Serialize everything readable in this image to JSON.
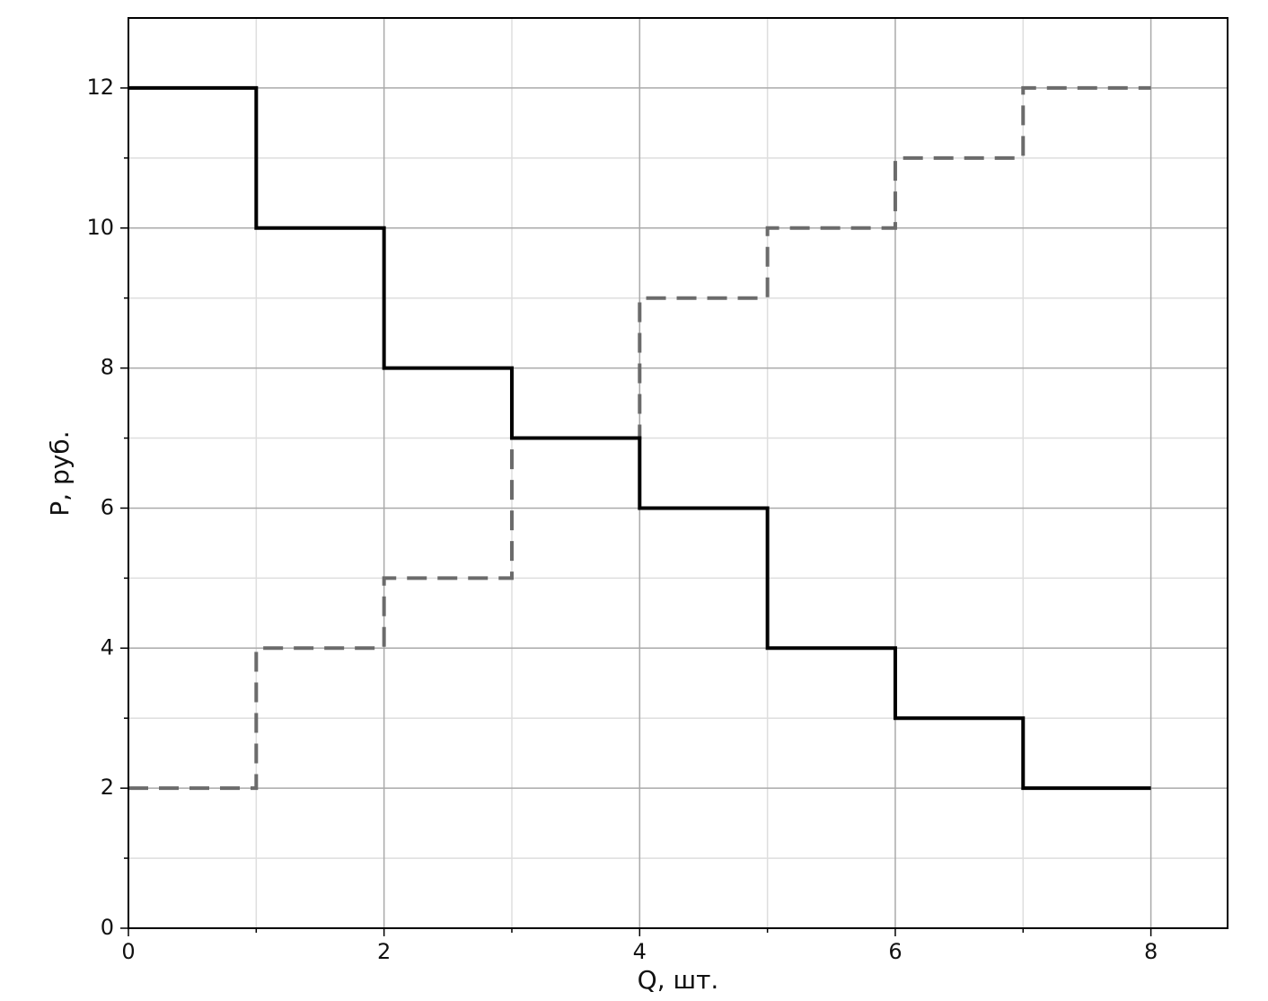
{
  "chart_data": {
    "type": "step-line",
    "step": "post",
    "x_label": "Q, шт.",
    "y_label": "P, руб.",
    "x": [
      0,
      1,
      2,
      3,
      4,
      5,
      6,
      7,
      8
    ],
    "series": [
      {
        "color": "#000000",
        "line_style": "solid",
        "values": [
          12,
          10,
          8,
          7,
          6,
          4,
          3,
          2,
          2
        ]
      },
      {
        "color": "#6b6b6b",
        "line_style": "dashed",
        "values": [
          2,
          4,
          5,
          7,
          9,
          10,
          11,
          12,
          12
        ]
      }
    ],
    "xlim": [
      0,
      8.6
    ],
    "ylim": [
      0,
      13
    ],
    "xticks": [
      0,
      2,
      4,
      6,
      8
    ],
    "yticks": [
      0,
      2,
      4,
      6,
      8,
      10,
      12
    ],
    "xminor": [
      1,
      3,
      5,
      7
    ],
    "yminor": [
      1,
      3,
      5,
      7,
      9,
      11
    ],
    "grid": true
  }
}
